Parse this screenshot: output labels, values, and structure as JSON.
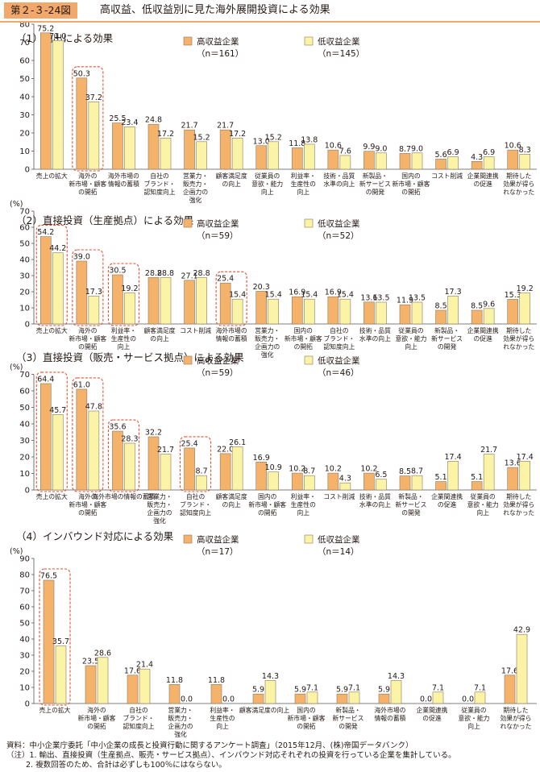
{
  "header": {
    "figure_no": "第２-３-24図",
    "title": "高収益、低収益別に見た海外展開投資による効果"
  },
  "notes": {
    "source": "資料：中小企業庁委託「中小企業の成長と投資行動に関するアンケート調査」（2015年12月、(株)帝国データバンク）",
    "note1": "（注）1. 輸出、直接投資（生産拠点、販売・サービス拠点）、インバウンド対応それぞれの投資を行っている企業を集計している。",
    "note2": "2. 複数回答のため、合計は必ずしも100％にはならない。"
  },
  "colors": {
    "high": "#f5b26b",
    "low": "#fbf3a5",
    "stroke": "#8a7a62",
    "highlight": "#e94e2b"
  },
  "chart_data": [
    {
      "type": "bar",
      "title": "（1）輸出による効果",
      "ylabel": "(%)",
      "ylim": [
        0,
        80
      ],
      "yticks": [
        0,
        10,
        20,
        30,
        40,
        50,
        60,
        70,
        80
      ],
      "series": [
        {
          "name": "高収益企業",
          "n": "（n＝161）",
          "values": [
            75.2,
            50.3,
            25.5,
            24.8,
            21.7,
            21.7,
            13.0,
            11.8,
            10.6,
            9.9,
            8.7,
            5.6,
            4.3,
            10.6
          ]
        },
        {
          "name": "低収益企業",
          "n": "（n＝145）",
          "values": [
            71.0,
            37.2,
            23.4,
            17.2,
            15.2,
            17.2,
            15.2,
            13.8,
            7.6,
            9.0,
            9.0,
            6.9,
            6.9,
            8.3
          ]
        }
      ],
      "categories": [
        [
          "売上の拡大"
        ],
        [
          "海外の",
          "新市場・顧客",
          "の開拓"
        ],
        [
          "海外市場の",
          "情報の蓄積"
        ],
        [
          "自社の",
          "ブランド・",
          "認知度向上"
        ],
        [
          "営業力・",
          "販売力・",
          "企画力の",
          "強化"
        ],
        [
          "顧客満足度",
          "の向上"
        ],
        [
          "従業員の",
          "意欲・能力",
          "向上"
        ],
        [
          "利益率・",
          "生産性の",
          "向上"
        ],
        [
          "技術・品質",
          "水準の向上"
        ],
        [
          "新製品・",
          "新サービス",
          "の開発"
        ],
        [
          "国内の",
          "新市場・顧客",
          "の開拓"
        ],
        [
          "コスト削減"
        ],
        [
          "企業間連携",
          "の促進"
        ],
        [
          "期待した",
          "効果が得ら",
          "れなかった"
        ]
      ],
      "highlighted": [
        1
      ]
    },
    {
      "type": "bar",
      "title": "（2）直接投資（生産拠点）による効果",
      "ylabel": "(%)",
      "ylim": [
        0,
        70
      ],
      "yticks": [
        0,
        10,
        20,
        30,
        40,
        50,
        60,
        70
      ],
      "series": [
        {
          "name": "高収益企業",
          "n": "（n＝59）",
          "values": [
            54.2,
            39.0,
            30.5,
            28.8,
            27.1,
            25.4,
            20.3,
            16.9,
            16.9,
            13.6,
            11.9,
            8.5,
            8.5,
            15.3
          ]
        },
        {
          "name": "低収益企業",
          "n": "（n＝52）",
          "values": [
            44.2,
            17.3,
            19.2,
            28.8,
            28.8,
            15.4,
            15.4,
            15.4,
            15.4,
            13.5,
            13.5,
            17.3,
            9.6,
            19.2
          ]
        }
      ],
      "categories": [
        [
          "売上の拡大"
        ],
        [
          "海外の",
          "新市場・顧客",
          "の開拓"
        ],
        [
          "利益率・",
          "生産性の",
          "向上"
        ],
        [
          "顧客満足度",
          "の向上"
        ],
        [
          "コスト削減"
        ],
        [
          "海外市場の",
          "情報の蓄積"
        ],
        [
          "営業力・",
          "販売力・",
          "企画力の",
          "強化"
        ],
        [
          "国内の",
          "新市場・顧客",
          "の開拓"
        ],
        [
          "自社の",
          "ブランド・",
          "認知度向上"
        ],
        [
          "技術・品質",
          "水準の向上"
        ],
        [
          "従業員の",
          "意欲・能力",
          "向上"
        ],
        [
          "新製品・",
          "新サービス",
          "の開発"
        ],
        [
          "企業間連携",
          "の促進"
        ],
        [
          "期待した",
          "効果が得ら",
          "れなかった"
        ]
      ],
      "highlighted": [
        0,
        1,
        2,
        5
      ]
    },
    {
      "type": "bar",
      "title": "（3）直接投資（販売・サービス拠点）による効果",
      "ylabel": "(%)",
      "ylim": [
        0,
        70
      ],
      "yticks": [
        0,
        10,
        20,
        30,
        40,
        50,
        60,
        70
      ],
      "series": [
        {
          "name": "高収益企業",
          "n": "（n＝59）",
          "values": [
            64.4,
            61.0,
            35.6,
            32.2,
            25.4,
            22.0,
            16.9,
            10.2,
            10.2,
            10.2,
            8.5,
            5.1,
            5.1,
            13.6
          ]
        },
        {
          "name": "低収益企業",
          "n": "（n＝46）",
          "values": [
            45.7,
            47.8,
            28.3,
            21.7,
            8.7,
            26.1,
            10.9,
            8.7,
            4.3,
            6.5,
            8.7,
            17.4,
            21.7,
            17.4
          ]
        }
      ],
      "categories": [
        [
          "売上の拡大"
        ],
        [
          "海外の",
          "新市場・顧客",
          "の開拓"
        ],
        [
          "海外市場の情報の蓄積"
        ],
        [
          "営業力・",
          "販売力・",
          "企画力の",
          "強化"
        ],
        [
          "自社の",
          "ブランド・",
          "認知度向上"
        ],
        [
          "顧客満足度",
          "の向上"
        ],
        [
          "国内の",
          "新市場・顧客",
          "の開拓"
        ],
        [
          "利益率・",
          "生産性の",
          "向上"
        ],
        [
          "コスト削減"
        ],
        [
          "技術・品質",
          "水準の向上"
        ],
        [
          "新製品・",
          "新サービス",
          "の開発"
        ],
        [
          "企業間連携",
          "の促進"
        ],
        [
          "従業員の",
          "意欲・能力",
          "向上"
        ],
        [
          "期待した",
          "効果が得ら",
          "れなかった"
        ]
      ],
      "highlighted": [
        0,
        1,
        2,
        4
      ]
    },
    {
      "type": "bar",
      "title": "（4）インバウンド対応による効果",
      "ylabel": "(%)",
      "ylim": [
        0,
        90
      ],
      "yticks": [
        0,
        10,
        20,
        30,
        40,
        50,
        60,
        70,
        80,
        90
      ],
      "series": [
        {
          "name": "高収益企業",
          "n": "（n＝17）",
          "values": [
            76.5,
            23.5,
            17.6,
            11.8,
            11.8,
            5.9,
            5.9,
            5.9,
            5.9,
            0.0,
            0.0,
            17.6
          ]
        },
        {
          "name": "低収益企業",
          "n": "（n＝14）",
          "values": [
            35.7,
            28.6,
            21.4,
            0.0,
            0.0,
            14.3,
            7.1,
            7.1,
            14.3,
            7.1,
            7.1,
            42.9
          ]
        }
      ],
      "categories": [
        [
          "売上の拡大"
        ],
        [
          "海外の",
          "新市場・顧客",
          "の開拓"
        ],
        [
          "自社の",
          "ブランド・",
          "認知度向上"
        ],
        [
          "営業力・",
          "販売力・",
          "企画力の",
          "強化"
        ],
        [
          "利益率・",
          "生産性の",
          "向上"
        ],
        [
          "顧客満足度の向上"
        ],
        [
          "国内の",
          "新市場・顧客",
          "の開拓"
        ],
        [
          "新製品・",
          "新サービス",
          "の開発"
        ],
        [
          "海外市場の",
          "情報の蓄積"
        ],
        [
          "企業間連携",
          "の促進"
        ],
        [
          "従業員の",
          "意欲・能力",
          "向上"
        ],
        [
          "期待した",
          "効果が得ら",
          "れなかった"
        ]
      ],
      "highlighted": [
        0
      ]
    }
  ]
}
